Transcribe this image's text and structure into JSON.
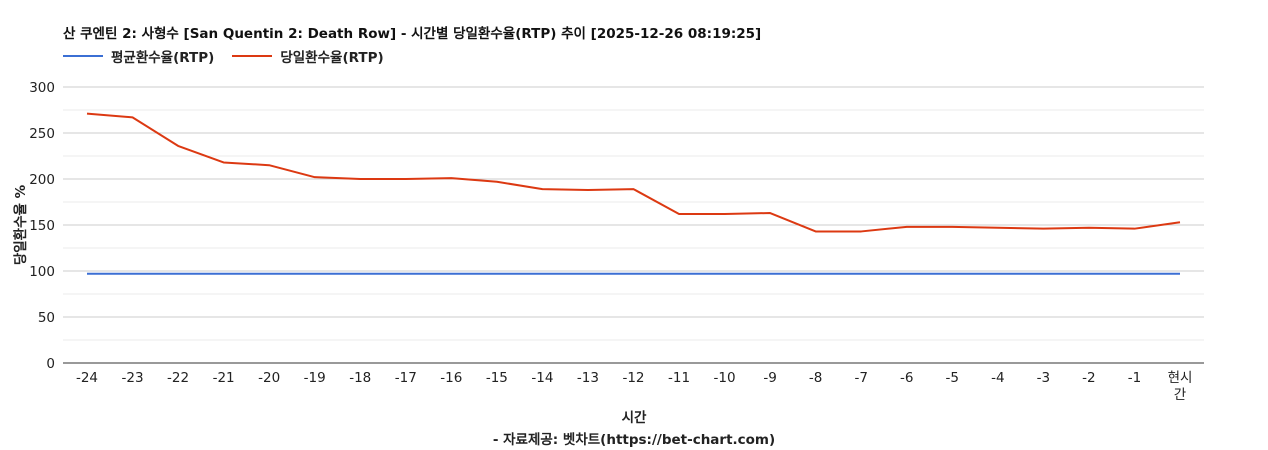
{
  "chart_data": {
    "type": "line",
    "title": "산 쿠엔틴 2: 사형수 [San Quentin 2: Death Row] - 시간별 당일환수율(RTP) 추이 [2025-12-26 08:19:25]",
    "xlabel": "시간",
    "ylabel": "당일환수율 %",
    "source": "- 자료제공: 벳차트(https://bet-chart.com)",
    "categories": [
      "-24",
      "-23",
      "-22",
      "-21",
      "-20",
      "-19",
      "-18",
      "-17",
      "-16",
      "-15",
      "-14",
      "-13",
      "-12",
      "-11",
      "-10",
      "-9",
      "-8",
      "-7",
      "-6",
      "-5",
      "-4",
      "-3",
      "-2",
      "-1",
      "현시간"
    ],
    "ylim": [
      0,
      300
    ],
    "yticks": [
      0,
      50,
      100,
      150,
      200,
      250,
      300
    ],
    "grid": true,
    "legend_position": "top-left",
    "series": [
      {
        "name": "평균환수율(RTP)",
        "color": "#3b6fd4",
        "values": [
          97,
          97,
          97,
          97,
          97,
          97,
          97,
          97,
          97,
          97,
          97,
          97,
          97,
          97,
          97,
          97,
          97,
          97,
          97,
          97,
          97,
          97,
          97,
          97,
          97
        ]
      },
      {
        "name": "당일환수율(RTP)",
        "color": "#dc3912",
        "values": [
          271,
          267,
          236,
          218,
          215,
          202,
          200,
          200,
          201,
          197,
          189,
          188,
          189,
          162,
          162,
          163,
          143,
          143,
          148,
          148,
          147,
          146,
          147,
          146,
          153
        ]
      }
    ]
  }
}
